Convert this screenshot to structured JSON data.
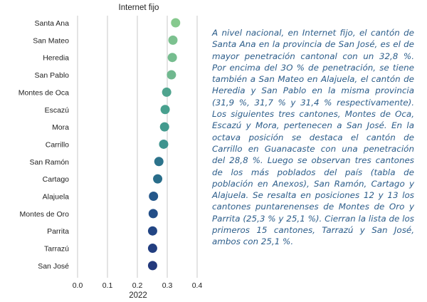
{
  "chart_data": {
    "type": "scatter",
    "title": "Internet fijo",
    "xlabel": "2022",
    "ylabel": "",
    "xlim": [
      0.0,
      0.4
    ],
    "xticks": [
      "0.0",
      "0.1",
      "0.2",
      "0.3",
      "0.4"
    ],
    "grid": "vertical",
    "categories": [
      "Santa Ana",
      "San Mateo",
      "Heredia",
      "San Pablo",
      "Montes de Oca",
      "Escazú",
      "Mora",
      "Carrillo",
      "San Ramón",
      "Cartago",
      "Alajuela",
      "Montes de Oro",
      "Parrita",
      "Tarrazú",
      "San José"
    ],
    "values": [
      0.328,
      0.319,
      0.317,
      0.314,
      0.298,
      0.293,
      0.291,
      0.288,
      0.272,
      0.268,
      0.254,
      0.253,
      0.251,
      0.251,
      0.251
    ],
    "colors": [
      "#86c98e",
      "#7cc18f",
      "#76bd8f",
      "#70b88f",
      "#4fa48e",
      "#48a08e",
      "#439a8e",
      "#3e938e",
      "#2c738b",
      "#296d8a",
      "#24578a",
      "#234e88",
      "#224584",
      "#223e80",
      "#23397c"
    ]
  },
  "text": {
    "paragraph": "A nivel nacional, en Internet fijo, el cantón de Santa Ana en la provincia de San José, es el de mayor penetración cantonal con un 32,8 %. Por encima del 3O % de penetración, se tiene también a San Mateo en Alajuela, el cantón de Heredia y San Pablo en la misma provincia (31,9 %, 31,7 % y 31,4 % respectivamente). Los siguientes tres cantones, Montes de Oca, Escazú y Mora, pertenecen a San José. En la octava posición se destaca el cantón de Carrillo en Guanacaste con una penetración del 28,8 %. Luego se observan tres cantones de los más poblados del país (tabla de población en Anexos), San Ramón, Cartago y Alajuela. Se resalta en posiciones 12 y 13 los cantones puntarenenses de Montes de Oro y Parrita (25,3 % y 25,1 %). Cierran la lista de los primeros 15 cantones, Tarrazú y San José, ambos con 25,1 %."
  }
}
